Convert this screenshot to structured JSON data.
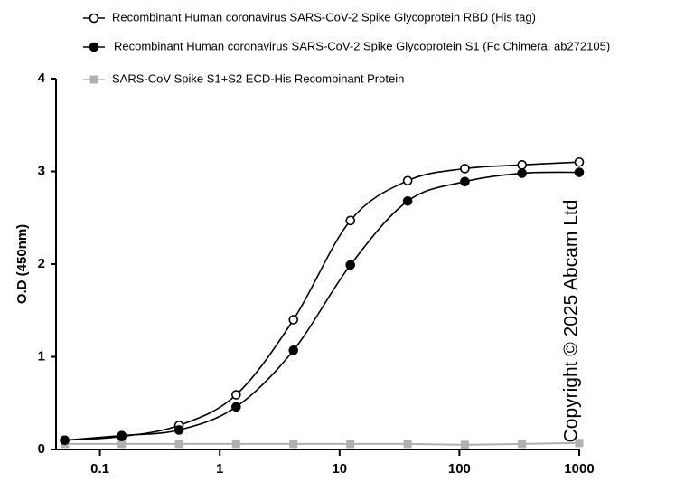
{
  "chart_data": {
    "type": "line",
    "ylabel": "O.D (450nm)",
    "annotation": "Copyright © 2025 Abcam Ltd",
    "log_x": true,
    "x": [
      0.0508,
      0.152,
      0.457,
      1.37,
      4.12,
      12.3,
      37,
      111,
      333,
      1000
    ],
    "xlim": [
      0.043,
      1000
    ],
    "xticks": [
      0.1,
      1,
      10,
      100,
      1000
    ],
    "ylim": [
      0,
      4
    ],
    "yticks": [
      0,
      1,
      2,
      3,
      4
    ],
    "series": [
      {
        "name": "Recombinant Human coronavirus SARS-CoV-2 Spike Glycoprotein RBD (His tag)",
        "color": "#000000",
        "marker": "open-circle",
        "smooth": true,
        "values": [
          0.1,
          0.14,
          0.26,
          0.59,
          1.4,
          2.47,
          2.9,
          3.03,
          3.07,
          3.1
        ]
      },
      {
        "name": "Recombinant Human coronavirus SARS-CoV-2 Spike Glycoprotein S1 (Fc Chimera, ab272105)",
        "color": "#000000",
        "marker": "filled-circle",
        "smooth": true,
        "values": [
          0.1,
          0.15,
          0.21,
          0.46,
          1.07,
          1.99,
          2.68,
          2.89,
          2.98,
          2.99
        ]
      },
      {
        "name": "SARS-CoV Spike S1+S2 ECD-His Recombinant Protein",
        "color": "#b0b0b0",
        "marker": "square",
        "smooth": false,
        "values": [
          0.06,
          0.06,
          0.06,
          0.06,
          0.06,
          0.06,
          0.06,
          0.05,
          0.06,
          0.07
        ]
      }
    ]
  }
}
